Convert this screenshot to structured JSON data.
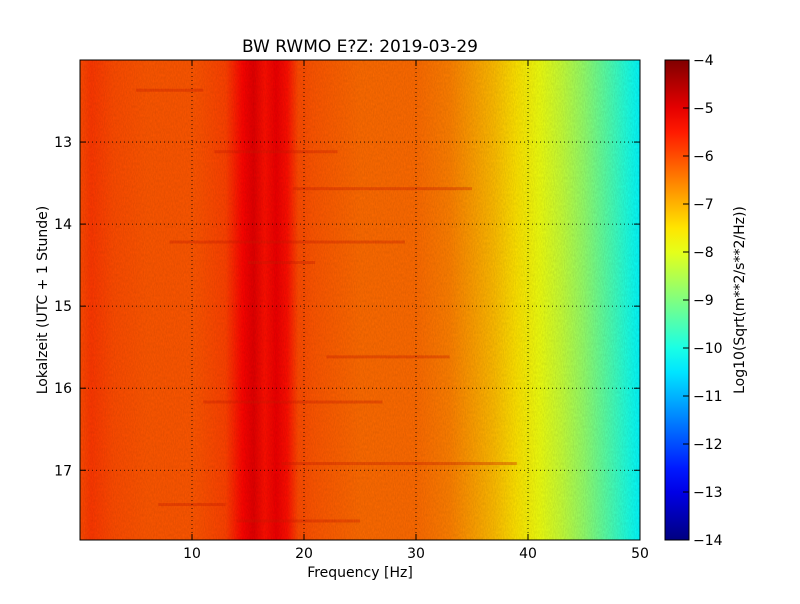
{
  "chart_data": {
    "type": "heatmap",
    "title": "BW RWMO E?Z: 2019-03-29",
    "xlabel": "Frequency [Hz]",
    "ylabel": "Lokalzeit (UTC + 1 Stunde)",
    "xlim": [
      0,
      50
    ],
    "ylim": [
      17.85,
      12.0
    ],
    "x_ticks": [
      10,
      20,
      30,
      40,
      50
    ],
    "y_ticks": [
      13,
      14,
      15,
      16,
      17
    ],
    "grid": true,
    "colorbar": {
      "label": "Log10(Sqrt(m**2/s**2/Hz))",
      "range": [
        -14,
        -4
      ],
      "ticks": [
        -4,
        -5,
        -6,
        -7,
        -8,
        -9,
        -10,
        -11,
        -12,
        -13,
        -14
      ],
      "colormap": "jet"
    },
    "frequency_profile": {
      "frequency": [
        0,
        1,
        3,
        6,
        10,
        13,
        14.5,
        15.5,
        16.5,
        17.5,
        18.5,
        19.5,
        21,
        25,
        30,
        33,
        35,
        37,
        39,
        41,
        43,
        45,
        47,
        49,
        50
      ],
      "value": [
        -6.0,
        -5.8,
        -6.0,
        -6.1,
        -6.1,
        -5.9,
        -5.3,
        -5.0,
        -5.4,
        -5.1,
        -5.4,
        -6.0,
        -6.1,
        -6.3,
        -6.3,
        -6.5,
        -6.8,
        -7.1,
        -7.5,
        -7.9,
        -8.3,
        -8.8,
        -9.4,
        -10.0,
        -10.3
      ]
    },
    "highlighted_bands_hz": [
      15,
      17.5
    ],
    "colors": {
      "axis": "#000000",
      "grid": "#000000"
    }
  }
}
